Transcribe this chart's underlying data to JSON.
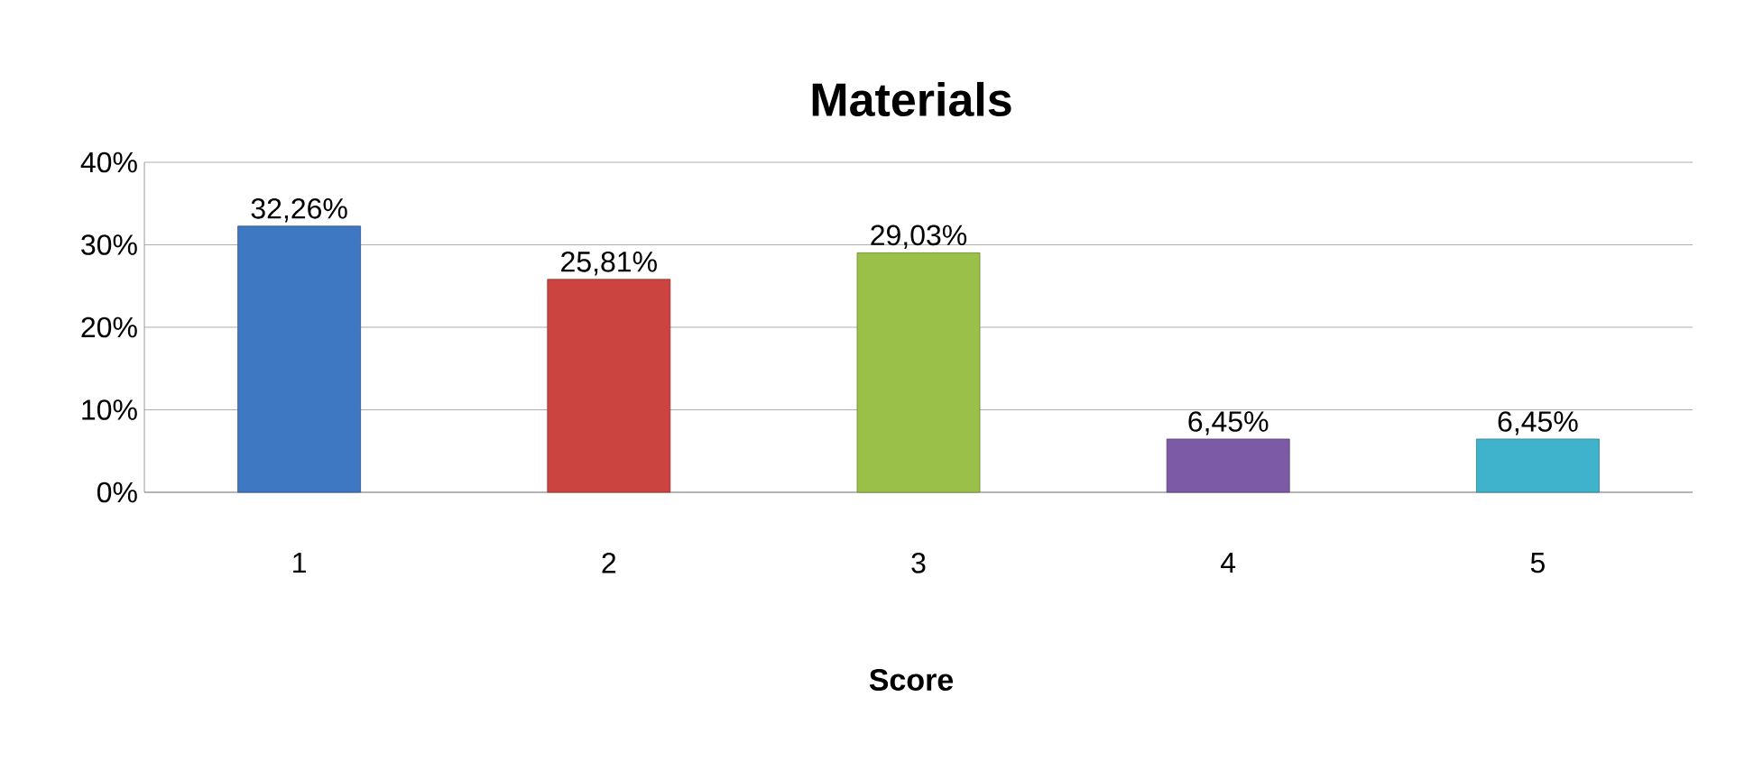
{
  "chart_data": {
    "type": "bar",
    "title": "Materials",
    "xlabel": "Score",
    "categories": [
      "1",
      "2",
      "3",
      "4",
      "5"
    ],
    "values": [
      32.26,
      25.81,
      29.03,
      6.45,
      6.45
    ],
    "colors": [
      "#3f78c2",
      "#cc4440",
      "#9bc04a",
      "#7d5aa6",
      "#3fb2cc"
    ],
    "value_labels": [
      "32,26%",
      "25,81%",
      "29,03%",
      "6,45%",
      "6,45%"
    ],
    "ylim": [
      0,
      40
    ],
    "yticks": [
      {
        "value": 0,
        "label": "0%"
      },
      {
        "value": 10,
        "label": "10%"
      },
      {
        "value": 20,
        "label": "20%"
      },
      {
        "value": 30,
        "label": "30%"
      },
      {
        "value": 40,
        "label": "40%"
      }
    ],
    "grid": "y"
  }
}
